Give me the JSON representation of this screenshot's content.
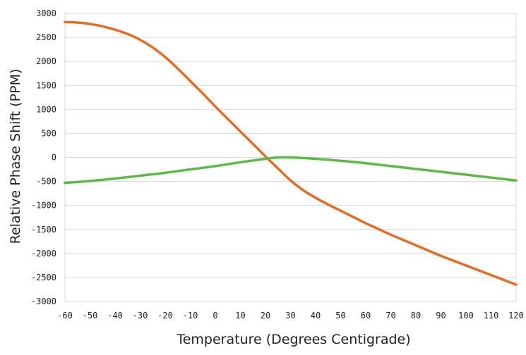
{
  "chart_data": {
    "type": "line",
    "title": "",
    "xlabel": "Temperature (Degrees Centigrade)",
    "ylabel": "Relative Phase Shift (PPM)",
    "xlim": [
      -60,
      120
    ],
    "ylim": [
      -3000,
      3000
    ],
    "x_ticks": [
      -60,
      -50,
      -40,
      -30,
      -20,
      -10,
      0,
      10,
      20,
      30,
      40,
      50,
      60,
      70,
      80,
      90,
      100,
      110,
      120
    ],
    "x_tick_labels": [
      "-60",
      "-50",
      "-40",
      "-30",
      "-20",
      "-10",
      "0",
      "10",
      "20",
      "30",
      "40",
      "50",
      "60",
      "70",
      "80",
      "90",
      "100",
      "110",
      "120"
    ],
    "y_ticks": [
      3000,
      2500,
      2000,
      1500,
      1000,
      500,
      0,
      -500,
      -1000,
      -1500,
      -2000,
      -2500,
      -3000
    ],
    "y_tick_labels": [
      "3000",
      "2500",
      "2000",
      "1500",
      "1000",
      "500",
      "0",
      "-500",
      "-1000",
      "-1500",
      "-2000",
      "-2500",
      "-3000"
    ],
    "grid": true,
    "legend": "none",
    "series": [
      {
        "color": "#e46c24",
        "x": [
          -60,
          -55,
          -50,
          -45,
          -40,
          -35,
          -30,
          -25,
          -20,
          -15,
          -10,
          -5,
          0,
          5,
          10,
          15,
          20,
          25,
          30,
          35,
          40,
          45,
          50,
          55,
          60,
          65,
          70,
          75,
          80,
          85,
          90,
          95,
          100,
          105,
          110,
          115,
          120
        ],
        "y": [
          2820,
          2810,
          2780,
          2730,
          2660,
          2570,
          2450,
          2290,
          2090,
          1850,
          1590,
          1330,
          1060,
          800,
          540,
          280,
          20,
          -230,
          -480,
          -680,
          -840,
          -980,
          -1110,
          -1240,
          -1370,
          -1490,
          -1610,
          -1720,
          -1830,
          -1940,
          -2050,
          -2150,
          -2250,
          -2350,
          -2450,
          -2550,
          -2650
        ]
      },
      {
        "color": "#5cb947",
        "x": [
          -60,
          -50,
          -40,
          -30,
          -20,
          -10,
          0,
          10,
          20,
          25,
          30,
          40,
          50,
          60,
          70,
          80,
          90,
          100,
          110,
          120
        ],
        "y": [
          -530,
          -490,
          -440,
          -380,
          -320,
          -250,
          -180,
          -100,
          -30,
          0,
          0,
          -30,
          -70,
          -120,
          -180,
          -240,
          -300,
          -360,
          -420,
          -480
        ]
      }
    ]
  }
}
